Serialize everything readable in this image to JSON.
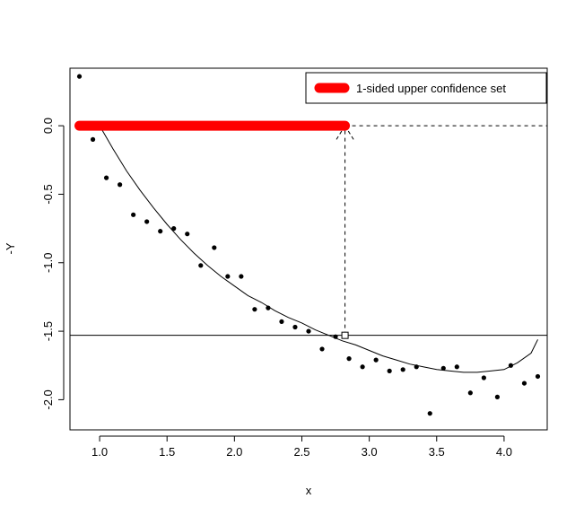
{
  "chart_data": {
    "type": "scatter",
    "title": "",
    "xlabel": "x",
    "ylabel": "-Y",
    "xlim": [
      0.78,
      4.32
    ],
    "ylim": [
      -2.22,
      0.42
    ],
    "x_ticks": [
      1.0,
      1.5,
      2.0,
      2.5,
      3.0,
      3.5,
      4.0
    ],
    "x_tick_labels": [
      "1.0",
      "1.5",
      "2.0",
      "2.5",
      "3.0",
      "3.5",
      "4.0"
    ],
    "y_ticks": [
      0.0,
      -0.5,
      -1.0,
      -1.5,
      -2.0
    ],
    "y_tick_labels": [
      "0.0",
      "-0.5",
      "-1.0",
      "-1.5",
      "-2.0"
    ],
    "points": {
      "x": [
        0.85,
        0.95,
        1.05,
        1.15,
        1.25,
        1.35,
        1.45,
        1.55,
        1.65,
        1.75,
        1.85,
        1.95,
        2.05,
        2.15,
        2.25,
        2.35,
        2.45,
        2.55,
        2.65,
        2.75,
        2.85,
        2.95,
        3.05,
        3.15,
        3.25,
        3.35,
        3.45,
        3.55,
        3.65,
        3.75,
        3.85,
        3.95,
        4.05,
        4.15,
        4.25
      ],
      "y": [
        0.36,
        -0.1,
        -0.38,
        -0.43,
        -0.65,
        -0.7,
        -0.77,
        -0.75,
        -0.79,
        -1.02,
        -0.89,
        -1.1,
        -1.1,
        -1.34,
        -1.33,
        -1.43,
        -1.47,
        -1.5,
        -1.63,
        -1.54,
        -1.7,
        -1.76,
        -1.71,
        -1.79,
        -1.78,
        -1.76,
        -2.1,
        -1.77,
        -1.76,
        -1.95,
        -1.84,
        -1.98,
        -1.75,
        -1.88,
        -1.83
      ],
      "color": "#000000"
    },
    "curve": {
      "x": [
        1.0,
        1.1,
        1.2,
        1.3,
        1.4,
        1.5,
        1.6,
        1.7,
        1.8,
        1.9,
        2.0,
        2.1,
        2.2,
        2.3,
        2.4,
        2.5,
        2.6,
        2.7,
        2.8,
        2.9,
        3.0,
        3.1,
        3.2,
        3.3,
        3.4,
        3.5,
        3.6,
        3.7,
        3.8,
        3.9,
        4.0,
        4.1,
        4.2,
        4.25
      ],
      "y": [
        0.0,
        -0.17,
        -0.33,
        -0.47,
        -0.6,
        -0.72,
        -0.83,
        -0.93,
        -1.02,
        -1.1,
        -1.17,
        -1.24,
        -1.29,
        -1.35,
        -1.4,
        -1.44,
        -1.49,
        -1.53,
        -1.57,
        -1.6,
        -1.64,
        -1.68,
        -1.71,
        -1.74,
        -1.76,
        -1.78,
        -1.79,
        -1.8,
        -1.8,
        -1.79,
        -1.78,
        -1.73,
        -1.66,
        -1.56
      ],
      "color": "#000000"
    },
    "confidence_set": {
      "x_start": 0.85,
      "x_end": 2.82,
      "y": 0.0,
      "color": "#ff0000"
    },
    "hline_dashed": 0.0,
    "hline_solid": -1.53,
    "marker": {
      "x": 2.82,
      "y": -1.53
    },
    "legend": {
      "position": "top-right",
      "entries": [
        {
          "label": "1-sided upper confidence set",
          "color": "#ff0000"
        }
      ]
    },
    "grid": false
  }
}
